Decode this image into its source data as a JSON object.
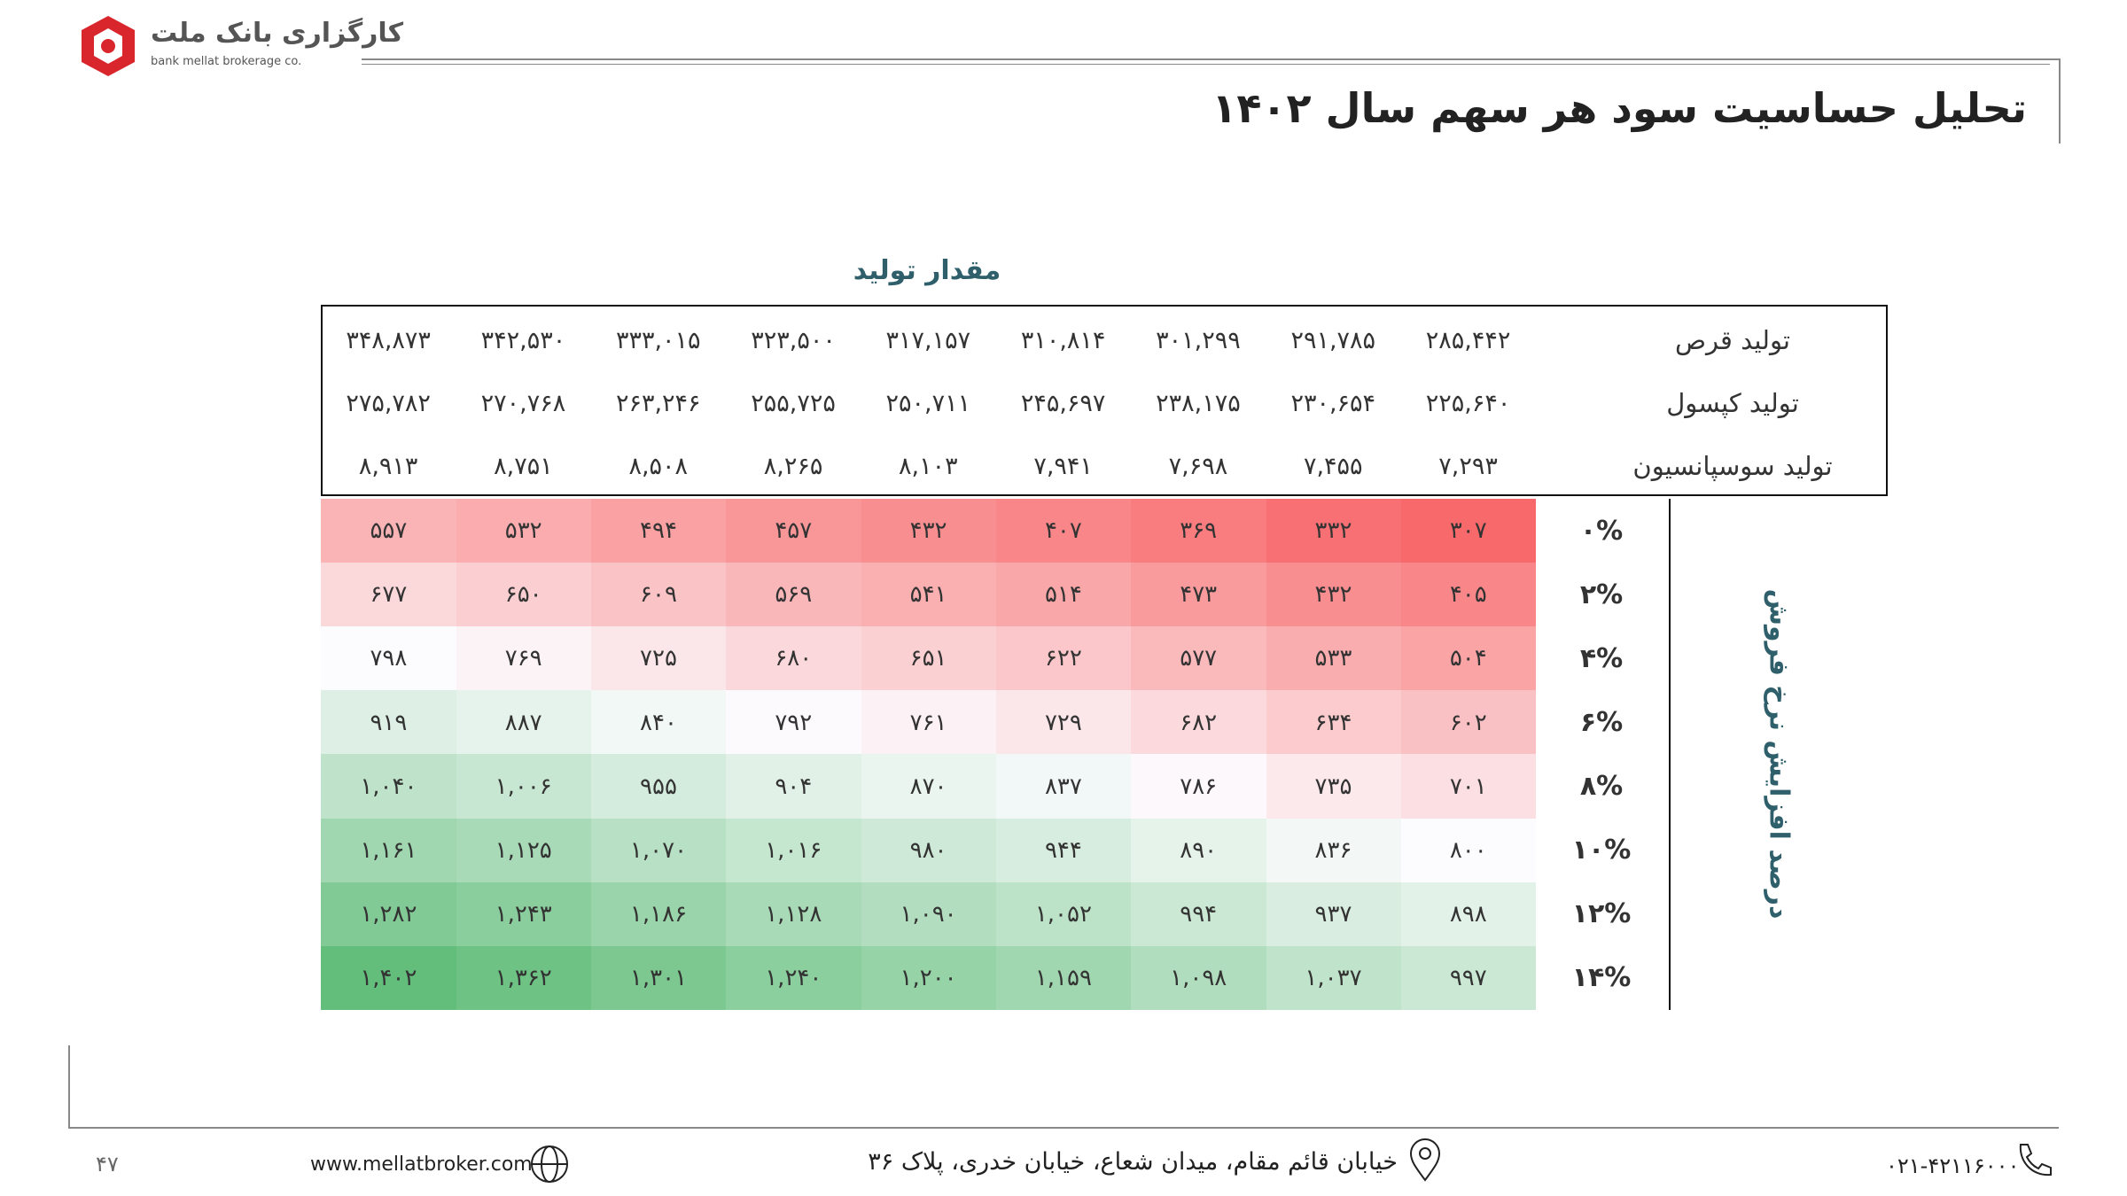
{
  "header": {
    "logo_text": "کارگزاری بانک ملت",
    "logo_subtext": "bank mellat brokerage co.",
    "title": "تحلیل حساسیت سود هر سهم سال ۱۴۰۲"
  },
  "table": {
    "column_header": "مقدار تولید",
    "row_header": "درصد افزایش نرخ فروش",
    "color_scale": [
      "#f8696b",
      "#fcfcff",
      "#63be7b"
    ],
    "production_rows": [
      {
        "label": "تولید قرص",
        "values": [
          "۲۸۵,۴۴۲",
          "۲۹۱,۷۸۵",
          "۳۰۱,۲۹۹",
          "۳۱۰,۸۱۴",
          "۳۱۷,۱۵۷",
          "۳۲۳,۵۰۰",
          "۳۳۳,۰۱۵",
          "۳۴۲,۵۳۰",
          "۳۴۸,۸۷۳"
        ]
      },
      {
        "label": "تولید کپسول",
        "values": [
          "۲۲۵,۶۴۰",
          "۲۳۰,۶۵۴",
          "۲۳۸,۱۷۵",
          "۲۴۵,۶۹۷",
          "۲۵۰,۷۱۱",
          "۲۵۵,۷۲۵",
          "۲۶۳,۲۴۶",
          "۲۷۰,۷۶۸",
          "۲۷۵,۷۸۲"
        ]
      },
      {
        "label": "تولید سوسپانسیون",
        "values": [
          "۷,۲۹۳",
          "۷,۴۵۵",
          "۷,۶۹۸",
          "۷,۹۴۱",
          "۸,۱۰۳",
          "۸,۲۶۵",
          "۸,۵۰۸",
          "۸,۷۵۱",
          "۸,۹۱۳"
        ]
      }
    ],
    "rows": [
      {
        "label": "۰%",
        "values": [
          "۳۰۷",
          "۳۳۲",
          "۳۶۹",
          "۴۰۷",
          "۴۳۲",
          "۴۵۷",
          "۴۹۴",
          "۵۳۲",
          "۵۵۷"
        ]
      },
      {
        "label": "۲%",
        "values": [
          "۴۰۵",
          "۴۳۲",
          "۴۷۳",
          "۵۱۴",
          "۵۴۱",
          "۵۶۹",
          "۶۰۹",
          "۶۵۰",
          "۶۷۷"
        ]
      },
      {
        "label": "۴%",
        "values": [
          "۵۰۴",
          "۵۳۳",
          "۵۷۷",
          "۶۲۲",
          "۶۵۱",
          "۶۸۰",
          "۷۲۵",
          "۷۶۹",
          "۷۹۸"
        ]
      },
      {
        "label": "۶%",
        "values": [
          "۶۰۲",
          "۶۳۴",
          "۶۸۲",
          "۷۲۹",
          "۷۶۱",
          "۷۹۲",
          "۸۴۰",
          "۸۸۷",
          "۹۱۹"
        ]
      },
      {
        "label": "۸%",
        "values": [
          "۷۰۱",
          "۷۳۵",
          "۷۸۶",
          "۸۳۷",
          "۸۷۰",
          "۹۰۴",
          "۹۵۵",
          "۱,۰۰۶",
          "۱,۰۴۰"
        ]
      },
      {
        "label": "۱۰%",
        "values": [
          "۸۰۰",
          "۸۳۶",
          "۸۹۰",
          "۹۴۴",
          "۹۸۰",
          "۱,۰۱۶",
          "۱,۰۷۰",
          "۱,۱۲۵",
          "۱,۱۶۱"
        ]
      },
      {
        "label": "۱۲%",
        "values": [
          "۸۹۸",
          "۹۳۷",
          "۹۹۴",
          "۱,۰۵۲",
          "۱,۰۹۰",
          "۱,۱۲۸",
          "۱,۱۸۶",
          "۱,۲۴۳",
          "۱,۲۸۲"
        ]
      },
      {
        "label": "۱۴%",
        "values": [
          "۹۹۷",
          "۱,۰۳۷",
          "۱,۰۹۸",
          "۱,۱۵۹",
          "۱,۲۰۰",
          "۱,۲۴۰",
          "۱,۳۰۱",
          "۱,۳۶۲",
          "۱,۴۰۲"
        ]
      }
    ]
  },
  "footer": {
    "page_number": "۴۷",
    "website": "www.mellatbroker.com",
    "address": "خیابان قائم مقام، میدان شعاع، خیابان خدری، پلاک ۳۶",
    "phone": "۰۲۱-۴۲۱۱۶۰۰۰"
  }
}
